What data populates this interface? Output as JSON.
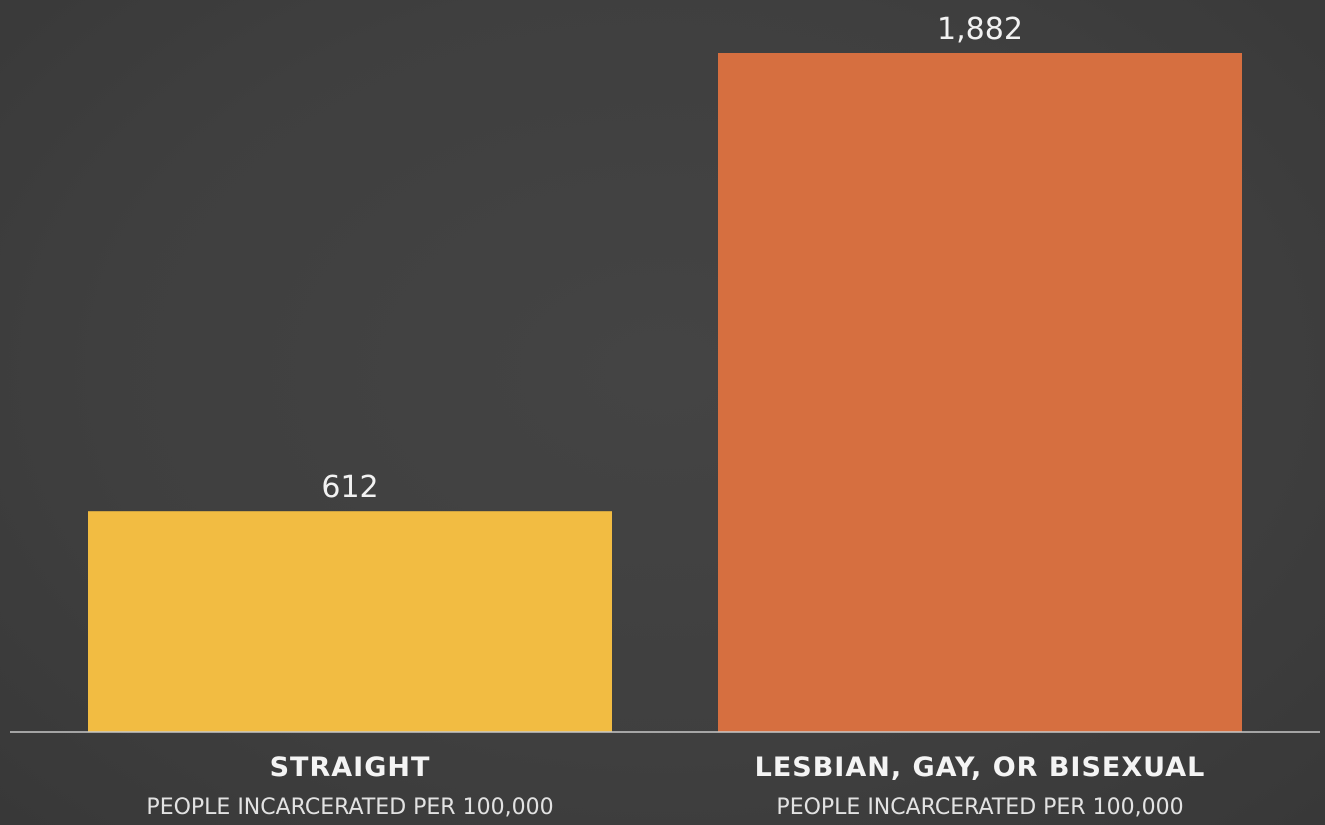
{
  "chart_data": {
    "type": "bar",
    "categories": [
      "STRAIGHT",
      "LESBIAN, GAY, OR BISEXUAL"
    ],
    "category_sublabels": [
      "PEOPLE INCARCERATED PER 100,000",
      "PEOPLE INCARCERATED PER 100,000"
    ],
    "values": [
      612,
      1882
    ],
    "value_labels": [
      "612",
      "1,882"
    ],
    "colors": [
      "#f2bc42",
      "#d66f40"
    ],
    "ylim": [
      0,
      1882
    ],
    "grid": false,
    "legend": "none",
    "baseline_color": "#c8c8c8"
  }
}
